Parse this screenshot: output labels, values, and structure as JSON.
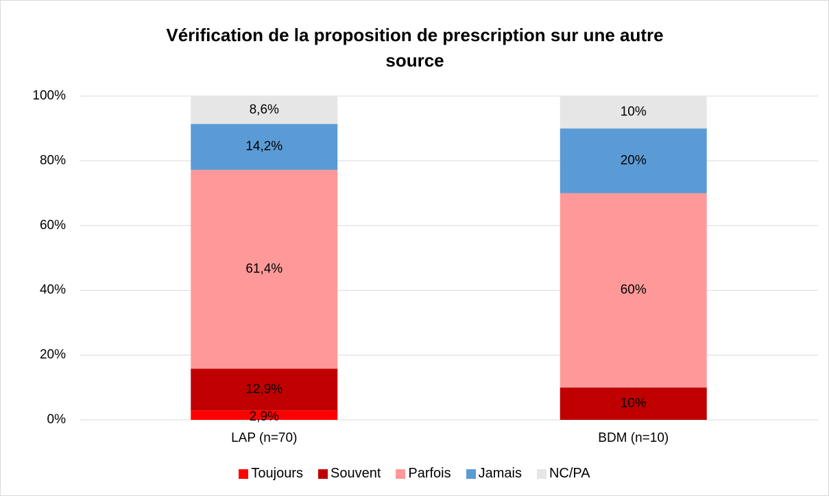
{
  "chart_data": {
    "type": "stacked_bar",
    "title": "Vérification de la proposition de prescription sur une autre source",
    "categories": [
      "LAP (n=70)",
      "BDM (n=10)"
    ],
    "series": [
      {
        "name": "Toujours",
        "color": "#ff0000",
        "values": [
          2.9,
          0
        ],
        "value_labels": [
          "2,9%",
          null
        ]
      },
      {
        "name": "Souvent",
        "color": "#c00000",
        "values": [
          12.9,
          10
        ],
        "value_labels": [
          "12,9%",
          "10%"
        ]
      },
      {
        "name": "Parfois",
        "color": "#ff9999",
        "values": [
          61.4,
          60
        ],
        "value_labels": [
          "61,4%",
          "60%"
        ]
      },
      {
        "name": "Jamais",
        "color": "#5b9bd5",
        "values": [
          14.2,
          20
        ],
        "value_labels": [
          "14,2%",
          "20%"
        ]
      },
      {
        "name": "NC/PA",
        "color": "#e6e6e6",
        "values": [
          8.6,
          10
        ],
        "value_labels": [
          "8,6%",
          "10%"
        ]
      }
    ],
    "ylim": [
      0,
      100
    ],
    "yticks": [
      {
        "value": 0,
        "label": "0%"
      },
      {
        "value": 20,
        "label": "20%"
      },
      {
        "value": 40,
        "label": "40%"
      },
      {
        "value": 60,
        "label": "60%"
      },
      {
        "value": 80,
        "label": "80%"
      },
      {
        "value": 100,
        "label": "100%"
      }
    ],
    "grid": true,
    "legend": "bottom"
  }
}
